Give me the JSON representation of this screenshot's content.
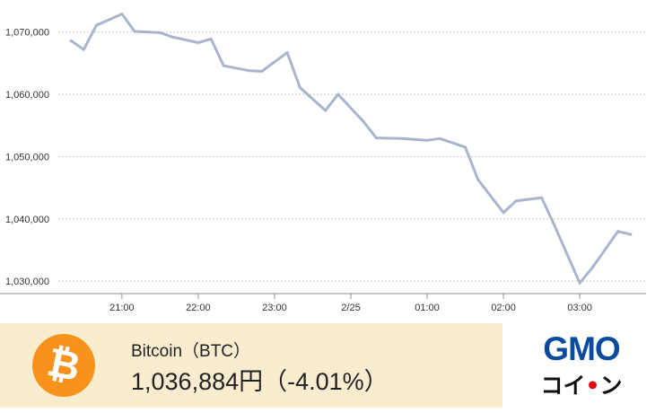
{
  "chart_data": {
    "type": "line",
    "x": [
      "20:20",
      "20:30",
      "20:40",
      "21:00",
      "21:10",
      "21:30",
      "21:40",
      "22:00",
      "22:10",
      "22:20",
      "22:40",
      "22:50",
      "23:10",
      "23:20",
      "23:40",
      "23:50",
      "00:10",
      "00:20",
      "00:40",
      "01:00",
      "01:10",
      "01:30",
      "01:40",
      "02:00",
      "02:10",
      "02:30",
      "02:40",
      "03:00",
      "03:10",
      "03:30",
      "03:40"
    ],
    "values": [
      1068600,
      1067200,
      1071100,
      1072900,
      1070100,
      1069900,
      1069200,
      1068300,
      1068900,
      1064600,
      1063800,
      1063700,
      1066700,
      1061100,
      1057400,
      1060000,
      1055600,
      1053000,
      1052900,
      1052600,
      1052900,
      1051500,
      1046300,
      1041000,
      1042900,
      1043400,
      1039000,
      1029700,
      1032200,
      1038000,
      1037500
    ],
    "xlim": [
      "20:10",
      "03:50"
    ],
    "ylim": [
      1028000,
      1074000
    ],
    "yticks": [
      1030000,
      1040000,
      1050000,
      1060000,
      1070000
    ],
    "ytick_labels": [
      "1,030,000",
      "1,040,000",
      "1,050,000",
      "1,060,000",
      "1,070,000"
    ],
    "xticks": [
      "21:00",
      "22:00",
      "23:00",
      "00:00",
      "01:00",
      "02:00",
      "03:00"
    ],
    "xtick_labels": [
      "21:00",
      "22:00",
      "23:00",
      "2/25",
      "01:00",
      "02:00",
      "03:00"
    ],
    "grid": "horizontal-dotted",
    "line_color": "#a9b5cc",
    "axis_color": "#8f8f8f",
    "title": "",
    "xlabel": "",
    "ylabel": ""
  },
  "ticker": {
    "icon": "bitcoin-icon",
    "icon_letter": "₿",
    "icon_color": "#f7931a",
    "name": "Bitcoin（BTC）",
    "price": "1,036,884円（-4.01%）",
    "background": "#faeccf"
  },
  "brand": {
    "logo_text": "GMO",
    "sub_prefix": "コイ",
    "sub_dot": "•",
    "sub_suffix": "ン",
    "color": "#0a4ba0",
    "accent": "#e60012"
  }
}
